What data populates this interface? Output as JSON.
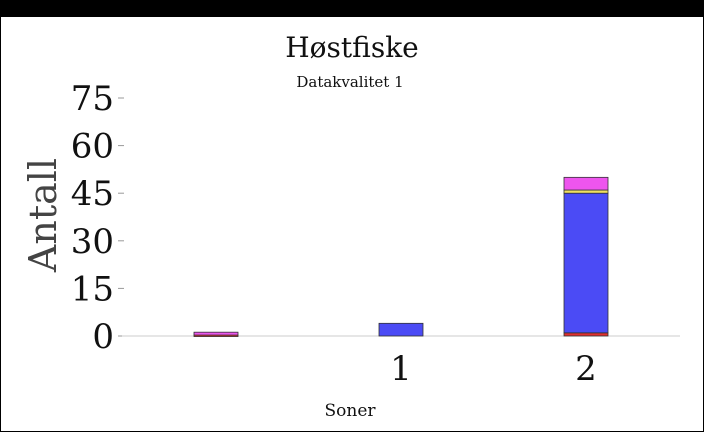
{
  "chart_data": {
    "type": "bar",
    "stacked": true,
    "title": "Høstfiske",
    "subtitle": "Datakvalitet 1",
    "xlabel": "Soner",
    "ylabel": "Antall",
    "ylim": [
      0,
      75
    ],
    "yticks": [
      "0",
      "15",
      "30",
      "45",
      "60",
      "75"
    ],
    "categories": [
      "",
      "1",
      "2"
    ],
    "grid": false,
    "legend": "none",
    "series": [
      {
        "color": "#e03030",
        "values": [
          0.3,
          0.0,
          1.0
        ]
      },
      {
        "color": "#4b4bf5",
        "values": [
          0.0,
          4.0,
          44.0
        ]
      },
      {
        "color": "#f0e060",
        "values": [
          0.0,
          0.0,
          1.0
        ]
      },
      {
        "color": "#ee55ee",
        "values": [
          0.9,
          0.0,
          4.0
        ]
      }
    ]
  },
  "colors": {
    "frame": "#000000",
    "axis": "#cccccc",
    "bar_outline": "#333333"
  }
}
